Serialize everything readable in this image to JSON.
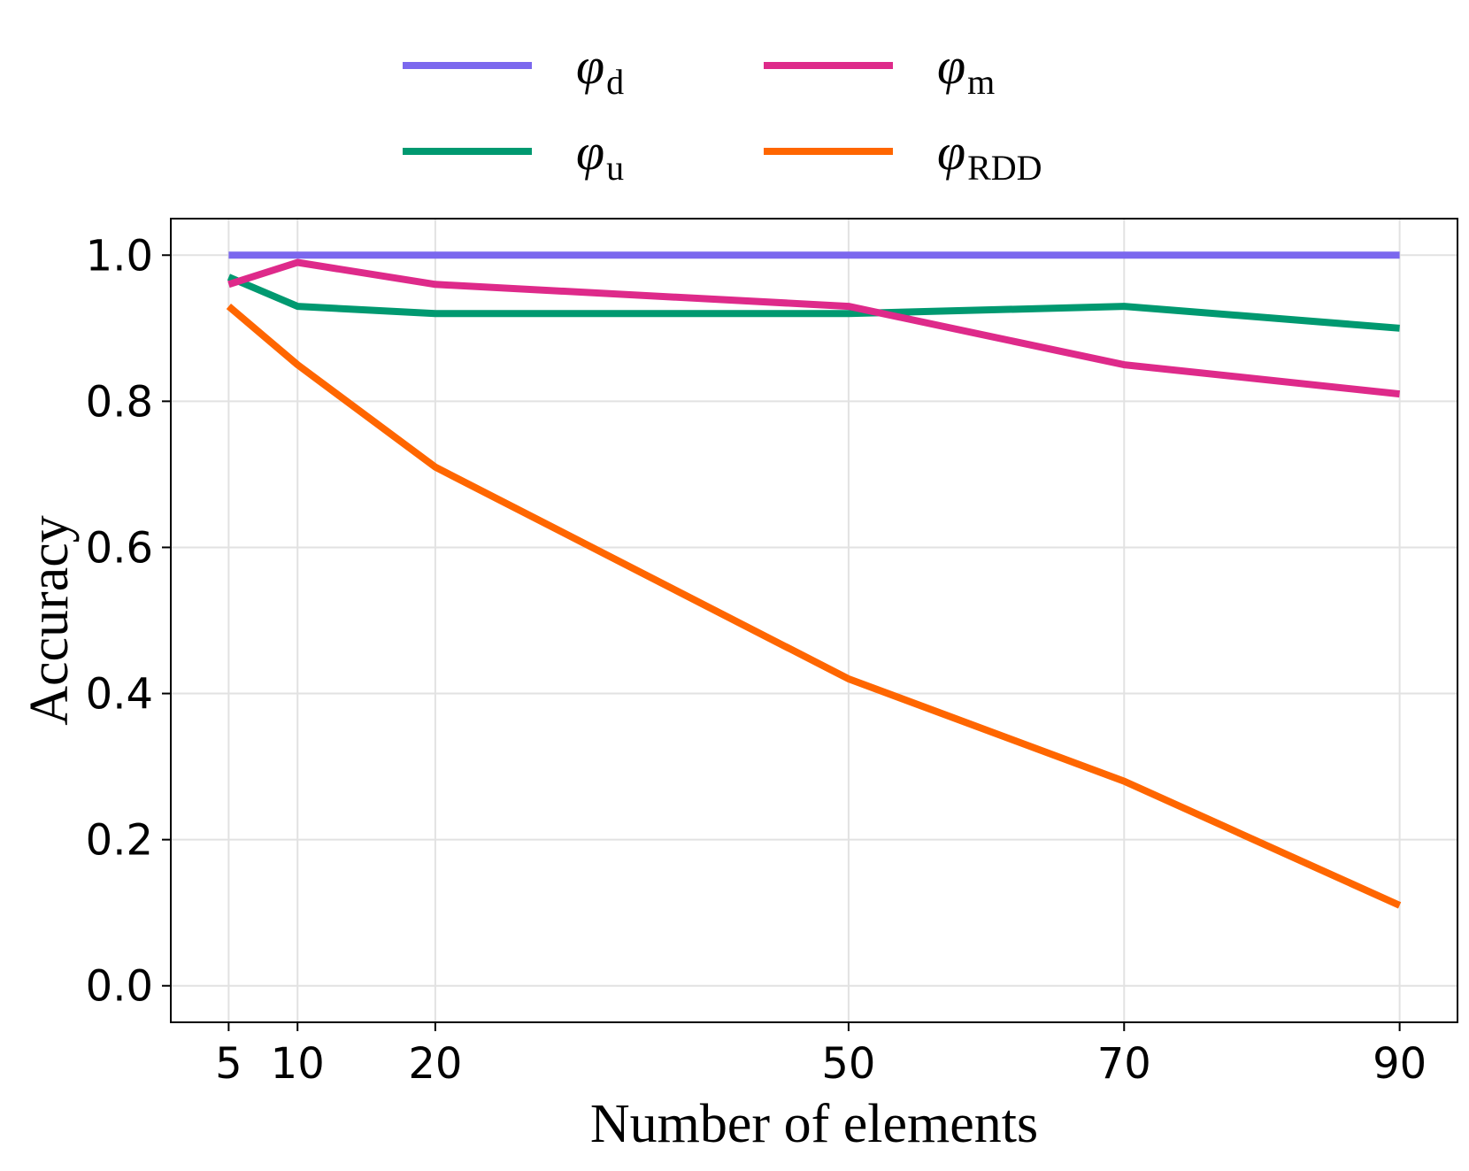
{
  "chart_data": {
    "type": "line",
    "title": "",
    "xlabel": "Number of elements",
    "ylabel": "Accuracy",
    "x": [
      5,
      10,
      20,
      50,
      70,
      90
    ],
    "xlim": [
      0.8,
      94.2
    ],
    "ylim": [
      -0.05,
      1.05
    ],
    "xticks": [
      5,
      10,
      20,
      50,
      70,
      90
    ],
    "xtick_labels": [
      "5",
      "10",
      "20",
      "50",
      "70",
      "90"
    ],
    "yticks": [
      0.0,
      0.2,
      0.4,
      0.6,
      0.8,
      1.0
    ],
    "ytick_labels": [
      "0.0",
      "0.2",
      "0.4",
      "0.6",
      "0.8",
      "1.0"
    ],
    "grid": true,
    "legend_position": "top-center, outside plot",
    "series": [
      {
        "name": "φd",
        "symbol": "φ",
        "subscript": "d",
        "color": "#7B68EE",
        "values": [
          1.0,
          1.0,
          1.0,
          1.0,
          1.0,
          1.0
        ]
      },
      {
        "name": "φu",
        "symbol": "φ",
        "subscript": "u",
        "color": "#009970",
        "values": [
          0.97,
          0.93,
          0.92,
          0.92,
          0.93,
          0.9
        ]
      },
      {
        "name": "φm",
        "symbol": "φ",
        "subscript": "m",
        "color": "#DE2A8A",
        "values": [
          0.96,
          0.99,
          0.96,
          0.93,
          0.85,
          0.81
        ]
      },
      {
        "name": "φRDD",
        "symbol": "φ",
        "subscript": "RDD",
        "color": "#FF6600",
        "values": [
          0.93,
          0.85,
          0.71,
          0.42,
          0.28,
          0.11
        ]
      }
    ]
  }
}
